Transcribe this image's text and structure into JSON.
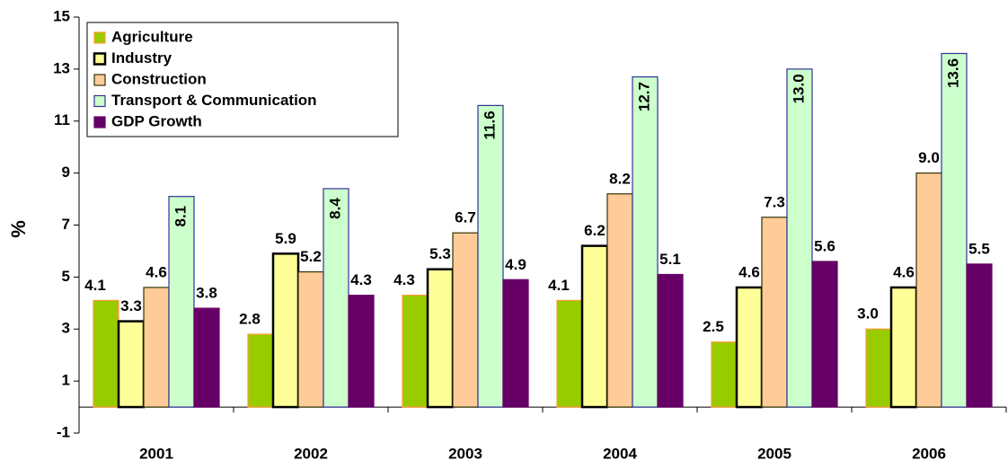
{
  "chart_data": {
    "type": "bar",
    "y_label": "%",
    "categories": [
      "2001",
      "2002",
      "2003",
      "2004",
      "2005",
      "2006"
    ],
    "series": [
      {
        "name": "Agriculture",
        "color": "#99cc00",
        "border": "#ff9933",
        "values": [
          4.1,
          2.8,
          4.3,
          4.1,
          2.5,
          3.0
        ],
        "value_labels": [
          "4.1",
          "2.8",
          "4.3",
          "4.1",
          "2.5",
          "3.0"
        ]
      },
      {
        "name": "Industry",
        "color": "#ffff99",
        "border": "#000000",
        "values": [
          3.3,
          5.9,
          5.3,
          6.2,
          4.6,
          4.6
        ],
        "value_labels": [
          "3.3",
          "5.9",
          "5.3",
          "6.2",
          "4.6",
          "4.6"
        ]
      },
      {
        "name": "Construction",
        "color": "#ffcc99",
        "border": "#333300",
        "values": [
          4.6,
          5.2,
          6.7,
          8.2,
          7.3,
          9.0
        ],
        "value_labels": [
          "4.6",
          "5.2",
          "6.7",
          "8.2",
          "7.3",
          "9.0"
        ]
      },
      {
        "name": "Transport & Communication",
        "color": "#ccffcc",
        "border": "#333399",
        "values": [
          8.1,
          8.4,
          11.6,
          12.7,
          13.0,
          13.6
        ],
        "value_labels": [
          "8.1",
          "8.4",
          "11.6",
          "12.7",
          "13.0",
          "13.6"
        ]
      },
      {
        "name": "GDP Growth",
        "color": "#660066",
        "border": "#660066",
        "values": [
          3.8,
          4.3,
          4.9,
          5.1,
          5.6,
          5.5
        ],
        "value_labels": [
          "3.8",
          "4.3",
          "4.9",
          "5.1",
          "5.6",
          "5.5"
        ]
      }
    ],
    "ylim": [
      -1,
      15
    ],
    "yticks": [
      -1,
      1,
      3,
      5,
      7,
      9,
      11,
      13,
      15
    ],
    "grid": false,
    "legend": "top-left"
  }
}
